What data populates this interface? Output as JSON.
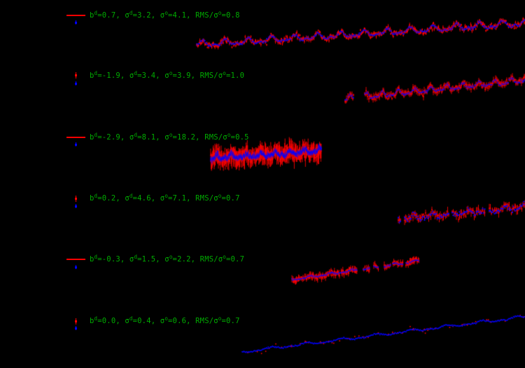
{
  "background": "#000000",
  "colors": {
    "data_red": "#ff0000",
    "model_blue": "#0000ff",
    "annotation_green": "#00aa00"
  },
  "chart_data": {
    "type": "scatter",
    "title": "",
    "xlabel": "",
    "ylabel": "",
    "axes_visible": false,
    "grid": false,
    "description": "Six stacked light-curve panels on black background; red points with error bars (data) overlaid by blue points (model), each with a green statistics annotation and a red/blue legend key at left.",
    "panels": [
      {
        "label_text": "b^d=0.7, s^d=3.2, s^o=4.1, RMS/s^o=0.8",
        "values": {
          "b_d": 0.7,
          "sigma_d": 3.2,
          "sigma_o": 4.1,
          "rms_over_sigma_o": 0.8
        },
        "label_parts": [
          {
            "t": "b"
          },
          {
            "t": "d",
            "sup": true
          },
          {
            "t": "=0.7, "
          },
          {
            "t": "σ"
          },
          {
            "t": "d",
            "sup": true
          },
          {
            "t": "=3.2, "
          },
          {
            "t": "σ"
          },
          {
            "t": "o",
            "sup": true
          },
          {
            "t": "=4.1, RMS/"
          },
          {
            "t": "σ"
          },
          {
            "t": "o",
            "sup": true
          },
          {
            "t": "=0.8"
          }
        ],
        "label_pos": {
          "x": 128,
          "y": 15
        },
        "legend": {
          "type": "line",
          "red": {
            "x": 95,
            "y": 22,
            "w": 27
          },
          "blue": {
            "x": 108,
            "y": 32
          }
        },
        "series": {
          "x_range": [
            281,
            750
          ],
          "segments": [
            [
              281,
              750
            ]
          ],
          "y_start": 64,
          "y_end": 33,
          "period": 33,
          "wave_amp": 3.6,
          "red_noise": 2.0,
          "errbar": 2.2,
          "red_density": 1,
          "blue_noise": 1.0,
          "blue_size": 1.7,
          "step": 0.9,
          "blue_band": false,
          "seed": 11
        }
      },
      {
        "label_text": "b^d=-1.9, s^d=3.4, s^o=3.9, RMS/s^o=1.0",
        "values": {
          "b_d": -1.9,
          "sigma_d": 3.4,
          "sigma_o": 3.9,
          "rms_over_sigma_o": 1.0
        },
        "label_parts": [
          {
            "t": "b"
          },
          {
            "t": "d",
            "sup": true
          },
          {
            "t": "=-1.9, "
          },
          {
            "t": "σ"
          },
          {
            "t": "d",
            "sup": true
          },
          {
            "t": "=3.4, "
          },
          {
            "t": "σ"
          },
          {
            "t": "o",
            "sup": true
          },
          {
            "t": "=3.9, RMS/"
          },
          {
            "t": "σ"
          },
          {
            "t": "o",
            "sup": true
          },
          {
            "t": "=1.0"
          }
        ],
        "label_pos": {
          "x": 128,
          "y": 101
        },
        "legend": {
          "type": "point",
          "red": {
            "x": 108,
            "y": 107
          },
          "blue": {
            "x": 108,
            "y": 119
          }
        },
        "series": {
          "x_range": [
            493,
            750
          ],
          "segments": [
            [
              493,
              505
            ],
            [
              521,
              750
            ]
          ],
          "y_start": 141,
          "y_end": 114,
          "period": 23,
          "wave_amp": 3.2,
          "red_noise": 2.0,
          "errbar": 3.6,
          "red_density": 1,
          "blue_noise": 1.1,
          "blue_size": 1.7,
          "step": 1.0,
          "blue_band": false,
          "seed": 22
        }
      },
      {
        "label_text": "b^d=-2.9, s^d=8.1, s^o=18.2, RMS/s^o=0.5",
        "values": {
          "b_d": -2.9,
          "sigma_d": 8.1,
          "sigma_o": 18.2,
          "rms_over_sigma_o": 0.5
        },
        "label_parts": [
          {
            "t": "b"
          },
          {
            "t": "d",
            "sup": true
          },
          {
            "t": "=-2.9, "
          },
          {
            "t": "σ"
          },
          {
            "t": "d",
            "sup": true
          },
          {
            "t": "=8.1, "
          },
          {
            "t": "σ"
          },
          {
            "t": "o",
            "sup": true
          },
          {
            "t": "=18.2, RMS/"
          },
          {
            "t": "σ"
          },
          {
            "t": "o",
            "sup": true
          },
          {
            "t": "=0.5"
          }
        ],
        "label_pos": {
          "x": 128,
          "y": 189
        },
        "legend": {
          "type": "line",
          "red": {
            "x": 95,
            "y": 196,
            "w": 27
          },
          "blue": {
            "x": 108,
            "y": 206
          }
        },
        "series": {
          "x_range": [
            301,
            459
          ],
          "segments": [
            [
              301,
              459
            ]
          ],
          "y_start": 226,
          "y_end": 215,
          "period": 21,
          "wave_amp": 2.6,
          "red_noise": 4.0,
          "errbar": 9.5,
          "red_density": 1,
          "blue_noise": 1.6,
          "blue_size": 2.0,
          "step": 0.55,
          "blue_band": true,
          "seed": 33
        }
      },
      {
        "label_text": "b^d=0.2, s^d=4.6, s^o=7.1, RMS/s^o=0.7",
        "values": {
          "b_d": 0.2,
          "sigma_d": 4.6,
          "sigma_o": 7.1,
          "rms_over_sigma_o": 0.7
        },
        "label_parts": [
          {
            "t": "b"
          },
          {
            "t": "d",
            "sup": true
          },
          {
            "t": "=0.2, "
          },
          {
            "t": "σ"
          },
          {
            "t": "d",
            "sup": true
          },
          {
            "t": "=4.6, "
          },
          {
            "t": "σ"
          },
          {
            "t": "o",
            "sup": true
          },
          {
            "t": "=7.1, RMS/"
          },
          {
            "t": "σ"
          },
          {
            "t": "o",
            "sup": true
          },
          {
            "t": "=0.7"
          }
        ],
        "label_pos": {
          "x": 128,
          "y": 276
        },
        "legend": {
          "type": "point",
          "red": {
            "x": 108,
            "y": 283
          },
          "blue": {
            "x": 108,
            "y": 294
          }
        },
        "series": {
          "x_range": [
            569,
            750
          ],
          "segments": [
            [
              569,
              572
            ],
            [
              578,
              642
            ],
            [
              646,
              693
            ],
            [
              699,
              750
            ]
          ],
          "y_start": 313,
          "y_end": 295,
          "period": 26,
          "wave_amp": 2.8,
          "red_noise": 2.6,
          "errbar": 4.6,
          "red_density": 1,
          "blue_noise": 1.9,
          "blue_size": 2.0,
          "step": 1.5,
          "blue_band": false,
          "seed": 44
        }
      },
      {
        "label_text": "b^d=-0.3, s^d=1.5, s^o=2.2, RMS/s^o=0.7",
        "values": {
          "b_d": -0.3,
          "sigma_d": 1.5,
          "sigma_o": 2.2,
          "rms_over_sigma_o": 0.7
        },
        "label_parts": [
          {
            "t": "b"
          },
          {
            "t": "d",
            "sup": true
          },
          {
            "t": "=-0.3, "
          },
          {
            "t": "σ"
          },
          {
            "t": "d",
            "sup": true
          },
          {
            "t": "=1.5, "
          },
          {
            "t": "σ"
          },
          {
            "t": "o",
            "sup": true
          },
          {
            "t": "=2.2, RMS/"
          },
          {
            "t": "σ"
          },
          {
            "t": "o",
            "sup": true
          },
          {
            "t": "=0.7"
          }
        ],
        "label_pos": {
          "x": 128,
          "y": 363
        },
        "legend": {
          "type": "line",
          "red": {
            "x": 95,
            "y": 370,
            "w": 27
          },
          "blue": {
            "x": 108,
            "y": 381
          }
        },
        "series": {
          "x_range": [
            417,
            599
          ],
          "segments": [
            [
              417,
              510
            ],
            [
              519,
              528
            ],
            [
              534,
              541
            ],
            [
              549,
              558
            ],
            [
              561,
              576
            ],
            [
              580,
              599
            ]
          ],
          "y_start": 399,
          "y_end": 372,
          "period": 30,
          "wave_amp": 1.2,
          "red_noise": 1.5,
          "errbar": 3.6,
          "red_density": 0.9,
          "blue_noise": 0.6,
          "blue_size": 1.6,
          "step": 0.8,
          "blue_band": false,
          "seed": 55
        }
      },
      {
        "label_text": "b^d=0.0, s^d=0.4, s^o=0.6, RMS/s^o=0.7",
        "values": {
          "b_d": 0.0,
          "sigma_d": 0.4,
          "sigma_o": 0.6,
          "rms_over_sigma_o": 0.7
        },
        "label_parts": [
          {
            "t": "b"
          },
          {
            "t": "d",
            "sup": true
          },
          {
            "t": "=0.0, "
          },
          {
            "t": "σ"
          },
          {
            "t": "d",
            "sup": true
          },
          {
            "t": "=0.4, "
          },
          {
            "t": "σ"
          },
          {
            "t": "o",
            "sup": true
          },
          {
            "t": "=0.6, RMS/"
          },
          {
            "t": "σ"
          },
          {
            "t": "o",
            "sup": true
          },
          {
            "t": "=0.7"
          }
        ],
        "label_pos": {
          "x": 128,
          "y": 451
        },
        "legend": {
          "type": "point",
          "red": {
            "x": 108,
            "y": 458
          },
          "blue": {
            "x": 108,
            "y": 468
          }
        },
        "series": {
          "x_range": [
            346,
            750
          ],
          "segments": [
            [
              346,
              750
            ]
          ],
          "y_start": 502,
          "y_end": 452,
          "period": 50,
          "wave_amp": 1.4,
          "red_noise": 1.8,
          "errbar": 0.9,
          "red_density": 0.22,
          "blue_noise": 0.55,
          "blue_size": 1.6,
          "step": 1.2,
          "blue_band": false,
          "seed": 66
        }
      }
    ]
  }
}
